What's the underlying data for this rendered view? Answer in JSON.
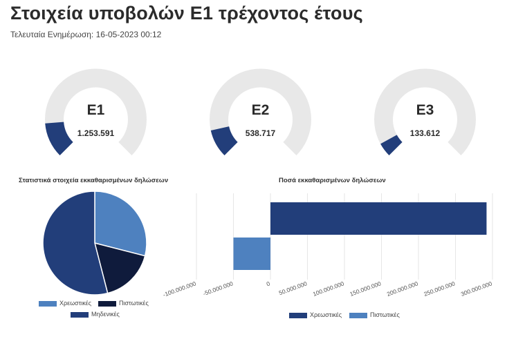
{
  "header": {
    "title": "Στοιχεία υποβολών Ε1 τρέχοντος έτους",
    "last_update": "Τελευταία Ενημέρωση: 16-05-2023 00:12"
  },
  "gauges": [
    {
      "label": "Ε1",
      "value": "1.253.591",
      "fraction": 0.15
    },
    {
      "label": "Ε2",
      "value": "538.717",
      "fraction": 0.12
    },
    {
      "label": "Ε3",
      "value": "133.612",
      "fraction": 0.06
    }
  ],
  "colors": {
    "dark_blue": "#223e7a",
    "light_blue": "#4e81bf",
    "navy": "#0f1b3c",
    "track": "#e8e8e8"
  },
  "chart_data": [
    {
      "type": "pie",
      "title": "Στατιστικά στοιχεία εκκαθαρισμένων δηλώσεων",
      "slices": [
        {
          "name": "Χρεωστικές",
          "value": 29,
          "color": "#4e81bf"
        },
        {
          "name": "Πιστωτικές",
          "value": 17,
          "color": "#0f1b3c"
        },
        {
          "name": "Μηδενικές",
          "value": 54,
          "color": "#223e7a"
        }
      ],
      "legend": "bottom"
    },
    {
      "type": "bar",
      "orientation": "horizontal",
      "title": "Ποσά  εκκαθαρισμένων δηλώσεων",
      "series": [
        {
          "name": "Χρεωστικές",
          "value": 292000000,
          "color": "#223e7a"
        },
        {
          "name": "Πιστωτικές",
          "value": -50000000,
          "color": "#4e81bf"
        }
      ],
      "xlim": [
        -100000000,
        300000000
      ],
      "x_ticks": [
        "-100.000.000",
        "-50.000.000",
        "0",
        "50.000.000",
        "100.000.000",
        "150.000.000",
        "200.000.000",
        "250.000.000",
        "300.000.000"
      ],
      "grid": true,
      "legend": "bottom"
    }
  ]
}
